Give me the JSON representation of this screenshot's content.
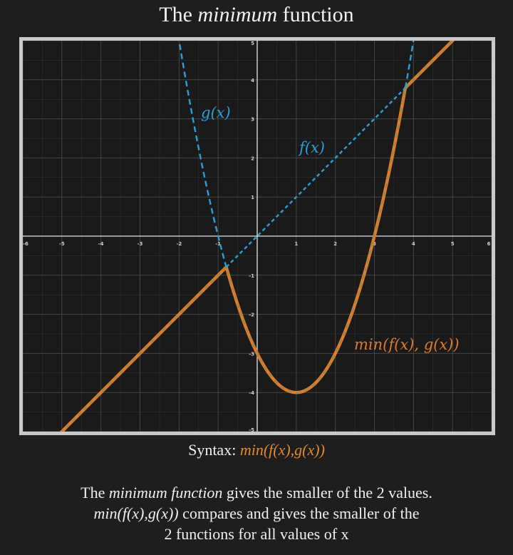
{
  "title": {
    "prefix": "The ",
    "italic": "minimum",
    "suffix": " function"
  },
  "chart_data": {
    "type": "line",
    "title": "The minimum function",
    "xlim": [
      -6,
      6
    ],
    "ylim": [
      -5,
      5
    ],
    "x_ticks": [
      -6,
      -5,
      -4,
      -3,
      -2,
      -1,
      1,
      2,
      3,
      4,
      5,
      6
    ],
    "y_ticks": [
      -5,
      -4,
      -3,
      -2,
      -1,
      1,
      2,
      3,
      4,
      5
    ],
    "grid": true,
    "series": [
      {
        "name": "f(x)",
        "formula": "y = x",
        "style": "dashed",
        "color": "#2a9fd8",
        "x": [
          -5,
          -0.79,
          0,
          1,
          2,
          3,
          3.79,
          5
        ],
        "y": [
          -5,
          -0.79,
          0,
          1,
          2,
          3,
          3.79,
          5
        ]
      },
      {
        "name": "g(x)",
        "formula": "y = (x - 1)^2 - 4",
        "style": "dashed",
        "color": "#2a9fd8",
        "x": [
          -2,
          -1,
          -0.79,
          0,
          1,
          2,
          3,
          3.79,
          4
        ],
        "y": [
          5,
          0,
          -0.79,
          -3,
          -4,
          -3,
          0,
          3.79,
          5
        ]
      },
      {
        "name": "min(f(x), g(x))",
        "style": "solid",
        "color": "#e07b2a",
        "x": [
          -5,
          -0.79,
          0,
          1,
          2,
          3,
          3.79,
          5
        ],
        "y": [
          -5,
          -0.79,
          -3,
          -4,
          -3,
          0,
          3.79,
          5
        ]
      }
    ],
    "annotations": [
      "g(x)",
      "f(x)",
      "min(f(x), g(x))"
    ],
    "colors": {
      "background": "#1a1a1a",
      "frame": "#c9c9c9",
      "grid": "#4a4a4a",
      "axis": "#e6e6e6",
      "blue": "#2a9fd8",
      "orange": "#e07b2a",
      "olive": "#8d8a4a"
    }
  },
  "syntax": {
    "label": "Syntax: ",
    "expr": "min(f(x),g(x))"
  },
  "description": {
    "line1_prefix": "The ",
    "line1_italic": "minimum function",
    "line1_suffix": " gives the smaller of the 2 values.",
    "line2_italic": "min(f(x),g(x))",
    "line2_suffix": " compares and gives the smaller of the",
    "line3": "2 functions for all values of x"
  }
}
